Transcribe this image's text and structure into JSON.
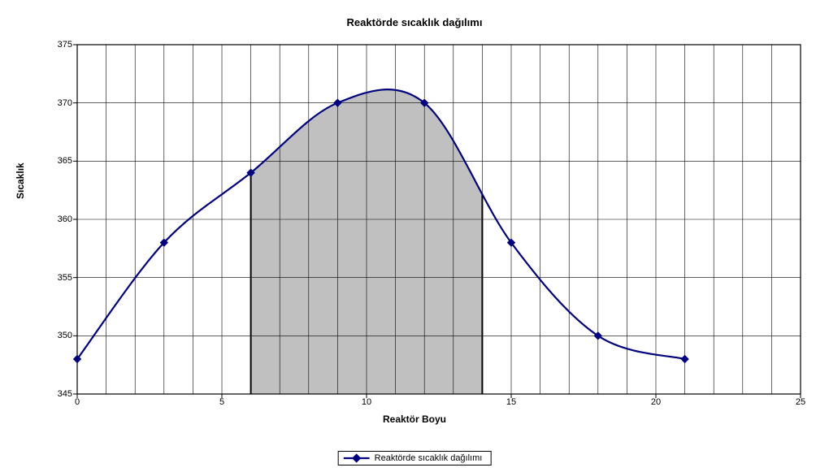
{
  "chart": {
    "type": "line",
    "title": "Reaktörde sıcaklık dağılımı",
    "x_axis_label": "Reaktör Boyu",
    "y_axis_label": "Sıcaklık",
    "title_fontsize": 13,
    "label_fontsize": 12,
    "tick_fontsize": 11,
    "background_color": "#ffffff",
    "plot_border_color": "#000000",
    "grid_color": "#000000",
    "grid_line_width": 0.6,
    "xlim": [
      0,
      25
    ],
    "ylim": [
      345,
      375
    ],
    "xtick_step": 5,
    "xticks": [
      0,
      5,
      10,
      15,
      20,
      25
    ],
    "minor_xticks": [
      1,
      2,
      3,
      4,
      6,
      7,
      8,
      9,
      11,
      12,
      13,
      14,
      16,
      17,
      18,
      19,
      21,
      22,
      23,
      24
    ],
    "ytick_step": 5,
    "yticks": [
      345,
      350,
      355,
      360,
      365,
      370,
      375
    ],
    "series": {
      "name": "Reaktörde sıcaklık dağılımı",
      "color": "#000080",
      "line_width": 2.2,
      "marker": "diamond",
      "marker_size": 9,
      "marker_fill": "#000080",
      "marker_stroke": "#000080",
      "x": [
        0,
        3,
        6,
        9,
        12,
        15,
        18,
        21
      ],
      "y": [
        348,
        358,
        364,
        370,
        370,
        358,
        350,
        348
      ]
    },
    "shaded_region": {
      "x_start": 6,
      "x_end": 14,
      "fill": "#c0c0c0",
      "border_color": "#000000",
      "border_width": 2
    },
    "legend": {
      "label": "Reaktörde sıcaklık dağılımı",
      "border_color": "#000000"
    }
  }
}
